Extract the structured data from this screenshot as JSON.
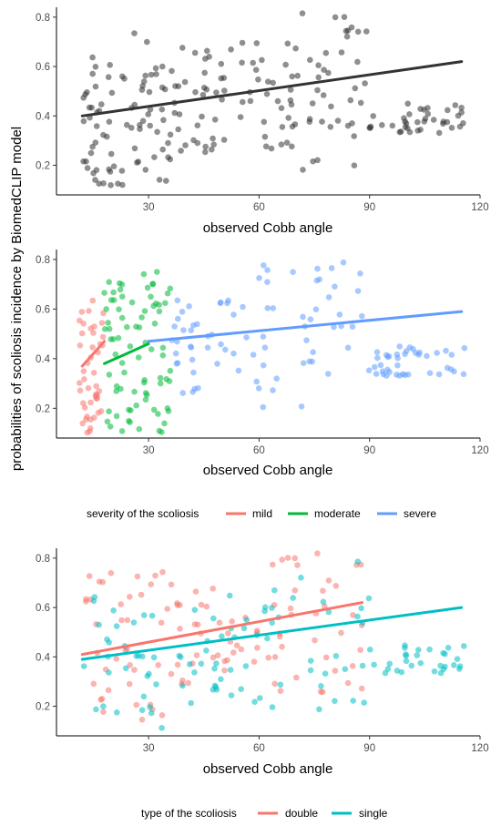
{
  "ylabel": "probabilities of scoliosis incidence by BiomedCLIP model",
  "charts": [
    {
      "id": "p1",
      "type": "scatter",
      "xlabel": "observed Cobb angle",
      "xlim": [
        5,
        120
      ],
      "ylim": [
        0.08,
        0.84
      ],
      "xticks": [
        30,
        60,
        90,
        120
      ],
      "yticks": [
        0.2,
        0.4,
        0.6,
        0.8
      ],
      "xtick_labels": [
        "30",
        "60",
        "90",
        "120"
      ],
      "ytick_labels": [
        "0.2",
        "0.4",
        "0.6",
        "0.8"
      ],
      "grid": false,
      "legend_title": "",
      "series": [
        {
          "group": "all",
          "color": "#333333",
          "fit": {
            "x0": 12,
            "y0": 0.4,
            "x1": 115,
            "y1": 0.62
          },
          "seed": 11,
          "n": 230,
          "slices": [
            {
              "x": [
                12,
                22
              ],
              "y": [
                0.1,
                0.64
              ]
            },
            {
              "x": [
                22,
                35
              ],
              "y": [
                0.12,
                0.75
              ]
            },
            {
              "x": [
                35,
                50
              ],
              "y": [
                0.22,
                0.68
              ]
            },
            {
              "x": [
                50,
                70
              ],
              "y": [
                0.25,
                0.7
              ]
            },
            {
              "x": [
                70,
                90
              ],
              "y": [
                0.18,
                0.82
              ]
            },
            {
              "x": [
                90,
                116
              ],
              "y": [
                0.33,
                0.45
              ]
            }
          ]
        }
      ]
    },
    {
      "id": "p2",
      "type": "scatter",
      "xlabel": "observed Cobb angle",
      "xlim": [
        5,
        120
      ],
      "ylim": [
        0.08,
        0.84
      ],
      "xticks": [
        30,
        60,
        90,
        120
      ],
      "yticks": [
        0.2,
        0.4,
        0.6,
        0.8
      ],
      "xtick_labels": [
        "30",
        "60",
        "90",
        "120"
      ],
      "ytick_labels": [
        "0.2",
        "0.4",
        "0.6",
        "0.8"
      ],
      "grid": false,
      "legend_title": "severity of the scoliosis",
      "legend_placement": "bottom",
      "series": [
        {
          "group": "mild",
          "name": "mild",
          "color": "#F8766D",
          "fit": {
            "x0": 12,
            "y0": 0.37,
            "x1": 18,
            "y1": 0.47
          },
          "seed": 21,
          "n": 45,
          "slices": [
            {
              "x": [
                11,
                18
              ],
              "y": [
                0.1,
                0.66
              ]
            }
          ]
        },
        {
          "group": "moderate",
          "name": "moderate",
          "color": "#00BA38",
          "fit": {
            "x0": 18,
            "y0": 0.38,
            "x1": 30,
            "y1": 0.46
          },
          "seed": 22,
          "n": 80,
          "slices": [
            {
              "x": [
                18,
                36
              ],
              "y": [
                0.1,
                0.75
              ]
            }
          ]
        },
        {
          "group": "severe",
          "name": "severe",
          "color": "#619CFF",
          "fit": {
            "x0": 30,
            "y0": 0.47,
            "x1": 115,
            "y1": 0.59
          },
          "seed": 23,
          "n": 120,
          "slices": [
            {
              "x": [
                36,
                60
              ],
              "y": [
                0.25,
                0.65
              ]
            },
            {
              "x": [
                60,
                90
              ],
              "y": [
                0.18,
                0.82
              ]
            },
            {
              "x": [
                90,
                116
              ],
              "y": [
                0.33,
                0.45
              ]
            }
          ]
        }
      ]
    },
    {
      "id": "p3",
      "type": "scatter",
      "xlabel": "observed Cobb angle",
      "xlim": [
        5,
        120
      ],
      "ylim": [
        0.08,
        0.84
      ],
      "xticks": [
        30,
        60,
        90,
        120
      ],
      "yticks": [
        0.2,
        0.4,
        0.6,
        0.8
      ],
      "xtick_labels": [
        "30",
        "60",
        "90",
        "120"
      ],
      "ytick_labels": [
        "0.2",
        "0.4",
        "0.6",
        "0.8"
      ],
      "grid": false,
      "legend_title": "type of the scoliosis",
      "legend_placement": "bottom",
      "series": [
        {
          "group": "double",
          "name": "double",
          "color": "#F8766D",
          "fit": {
            "x0": 12,
            "y0": 0.41,
            "x1": 88,
            "y1": 0.62
          },
          "seed": 31,
          "n": 110,
          "slices": [
            {
              "x": [
                12,
                35
              ],
              "y": [
                0.12,
                0.75
              ]
            },
            {
              "x": [
                35,
                60
              ],
              "y": [
                0.25,
                0.7
              ]
            },
            {
              "x": [
                60,
                88
              ],
              "y": [
                0.25,
                0.82
              ]
            }
          ]
        },
        {
          "group": "single",
          "name": "single",
          "color": "#00BFC4",
          "fit": {
            "x0": 12,
            "y0": 0.39,
            "x1": 115,
            "y1": 0.6
          },
          "seed": 32,
          "n": 120,
          "slices": [
            {
              "x": [
                12,
                35
              ],
              "y": [
                0.1,
                0.65
              ]
            },
            {
              "x": [
                35,
                60
              ],
              "y": [
                0.2,
                0.68
              ]
            },
            {
              "x": [
                60,
                90
              ],
              "y": [
                0.18,
                0.82
              ]
            },
            {
              "x": [
                90,
                116
              ],
              "y": [
                0.33,
                0.45
              ]
            }
          ]
        }
      ]
    }
  ]
}
